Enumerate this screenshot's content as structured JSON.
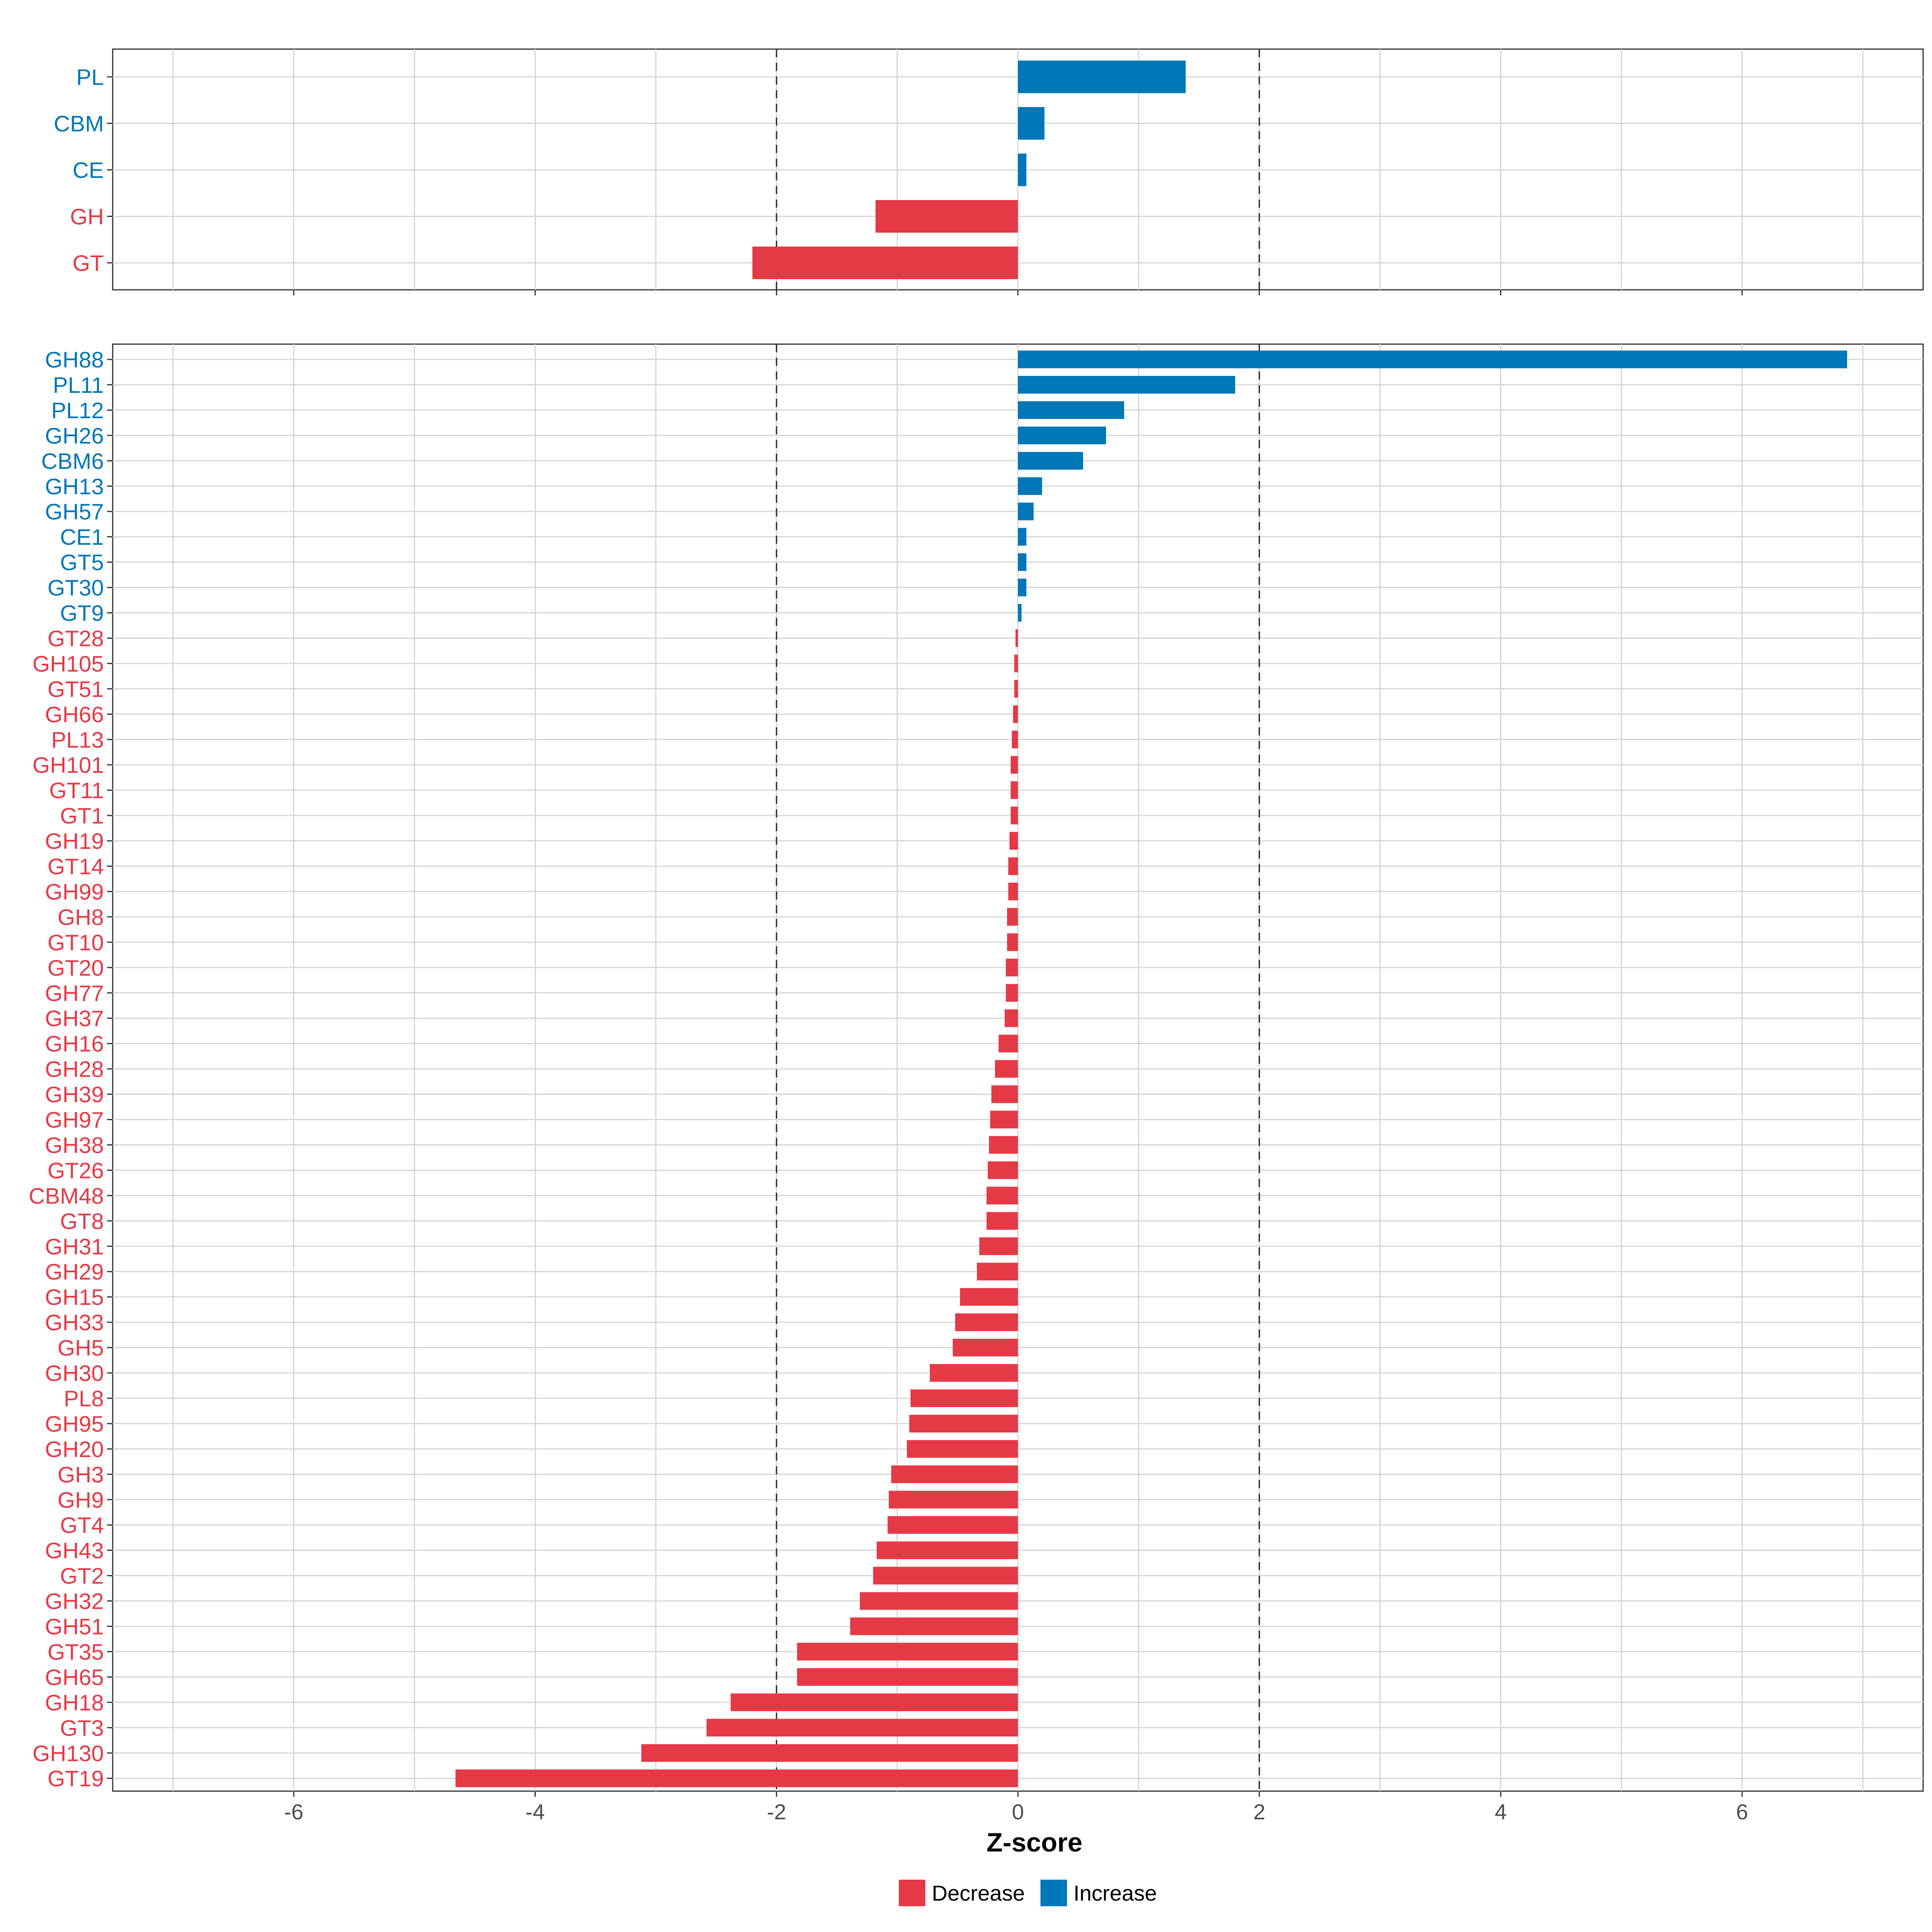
{
  "chart_data": {
    "type": "bar",
    "orientation": "horizontal",
    "xlabel": "Z-score",
    "xlim": [
      -7.5,
      7.5
    ],
    "xticks": [
      -6,
      -4,
      -2,
      0,
      2,
      4,
      6
    ],
    "thresholds": [
      -2,
      2
    ],
    "colors": {
      "Decrease": "#e63946",
      "Increase": "#0077b6"
    },
    "legend": {
      "position": "bottom",
      "entries": [
        {
          "key": "Decrease",
          "label": "Decrease"
        },
        {
          "key": "Increase",
          "label": "Increase"
        }
      ]
    },
    "panels": [
      {
        "name": "class",
        "categories": [
          "PL",
          "CBM",
          "CE",
          "GH",
          "GT"
        ],
        "values": [
          1.39,
          0.22,
          0.07,
          -1.18,
          -2.2
        ]
      },
      {
        "name": "family",
        "categories": [
          "GH88",
          "PL11",
          "PL12",
          "GH26",
          "CBM6",
          "GH13",
          "GH57",
          "CE1",
          "GT5",
          "GT30",
          "GT9",
          "GT28",
          "GH105",
          "GT51",
          "GH66",
          "PL13",
          "GH101",
          "GT11",
          "GT1",
          "GH19",
          "GT14",
          "GH99",
          "GH8",
          "GT10",
          "GT20",
          "GH77",
          "GH37",
          "GH16",
          "GH28",
          "GH39",
          "GH97",
          "GH38",
          "GT26",
          "CBM48",
          "GT8",
          "GH31",
          "GH29",
          "GH15",
          "GH33",
          "GH5",
          "GH30",
          "PL8",
          "GH95",
          "GH20",
          "GH3",
          "GH9",
          "GT4",
          "GH43",
          "GT2",
          "GH32",
          "GH51",
          "GT35",
          "GH65",
          "GH18",
          "GT3",
          "GH130",
          "GT19"
        ],
        "values": [
          6.87,
          1.8,
          0.88,
          0.73,
          0.54,
          0.2,
          0.13,
          0.07,
          0.07,
          0.07,
          0.03,
          -0.02,
          -0.03,
          -0.03,
          -0.04,
          -0.05,
          -0.06,
          -0.06,
          -0.06,
          -0.07,
          -0.08,
          -0.08,
          -0.09,
          -0.09,
          -0.1,
          -0.1,
          -0.11,
          -0.16,
          -0.19,
          -0.22,
          -0.23,
          -0.24,
          -0.25,
          -0.26,
          -0.26,
          -0.32,
          -0.34,
          -0.48,
          -0.52,
          -0.54,
          -0.73,
          -0.89,
          -0.9,
          -0.92,
          -1.05,
          -1.07,
          -1.08,
          -1.17,
          -1.2,
          -1.31,
          -1.39,
          -1.83,
          -1.83,
          -2.38,
          -2.58,
          -3.12,
          -4.66
        ]
      }
    ]
  }
}
